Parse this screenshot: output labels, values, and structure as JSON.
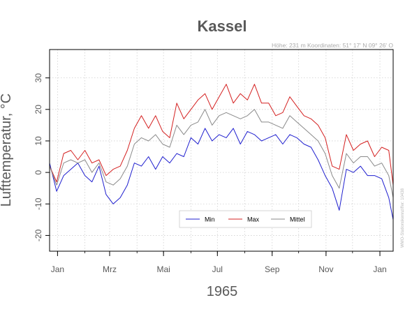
{
  "chart_data": {
    "type": "line",
    "title": "Kassel",
    "station_info": "Höhe: 231 m   Koordinaten: 51° 17' N  09° 26' O",
    "side_note": "WMO-Stationskennziffer: 10438",
    "xlabel": "1965",
    "ylabel": "Lufttemperatur, °C",
    "ylim": [
      -25,
      39
    ],
    "yticks": [
      -20,
      -10,
      0,
      10,
      20,
      30
    ],
    "x_unit": "day of year 1965 (Jan 1 = 1; 366–380 = Jan 1965 following year)",
    "xlim": [
      -8,
      381
    ],
    "xticks": [
      {
        "label": "Jan",
        "day": 1
      },
      {
        "label": "Mrz",
        "day": 60
      },
      {
        "label": "Mai",
        "day": 121
      },
      {
        "label": "Jul",
        "day": 182
      },
      {
        "label": "Sep",
        "day": 244
      },
      {
        "label": "Nov",
        "day": 305
      },
      {
        "label": "Jan",
        "day": 366
      }
    ],
    "grid": true,
    "legend_placement": "bottom-center",
    "series": [
      {
        "name": "Min",
        "color": "#1f1fcf",
        "x": [
          -8,
          0,
          8,
          16,
          24,
          32,
          40,
          48,
          56,
          64,
          72,
          80,
          88,
          96,
          104,
          112,
          120,
          128,
          136,
          144,
          152,
          160,
          168,
          176,
          184,
          192,
          200,
          208,
          216,
          224,
          232,
          240,
          248,
          256,
          264,
          272,
          280,
          288,
          296,
          304,
          312,
          320,
          328,
          336,
          344,
          352,
          360,
          368,
          376,
          381
        ],
        "values": [
          3,
          -6,
          -1,
          1,
          3,
          -1,
          -3,
          2,
          -7,
          -10,
          -8,
          -4,
          3,
          2,
          5,
          1,
          5,
          3,
          6,
          5,
          11,
          9,
          14,
          10,
          12,
          11,
          14,
          9,
          13,
          12,
          10,
          11,
          12,
          9,
          12,
          11,
          9,
          8,
          4,
          -1,
          -5,
          -12,
          1,
          0,
          2,
          -1,
          -1,
          -2,
          -8,
          -15
        ]
      },
      {
        "name": "Max",
        "color": "#d42020",
        "x": [
          -8,
          0,
          8,
          16,
          24,
          32,
          40,
          48,
          56,
          64,
          72,
          80,
          88,
          96,
          104,
          112,
          120,
          128,
          136,
          144,
          152,
          160,
          168,
          176,
          184,
          192,
          200,
          208,
          216,
          224,
          232,
          240,
          248,
          256,
          264,
          272,
          280,
          288,
          296,
          304,
          312,
          320,
          328,
          336,
          344,
          352,
          360,
          368,
          376,
          381
        ],
        "values": [
          2,
          -3,
          6,
          7,
          4,
          7,
          3,
          4,
          -1,
          1,
          2,
          7,
          14,
          18,
          14,
          18,
          13,
          11,
          22,
          17,
          20,
          23,
          25,
          20,
          24,
          28,
          22,
          25,
          23,
          28,
          22,
          22,
          18,
          19,
          24,
          21,
          18,
          17,
          15,
          11,
          2,
          1,
          12,
          7,
          9,
          10,
          5,
          8,
          7,
          -4
        ]
      },
      {
        "name": "Mittel",
        "color": "#8a8a8a",
        "x": [
          -8,
          0,
          8,
          16,
          24,
          32,
          40,
          48,
          56,
          64,
          72,
          80,
          88,
          96,
          104,
          112,
          120,
          128,
          136,
          144,
          152,
          160,
          168,
          176,
          184,
          192,
          200,
          208,
          216,
          224,
          232,
          240,
          248,
          256,
          264,
          272,
          280,
          288,
          296,
          304,
          312,
          320,
          328,
          336,
          344,
          352,
          360,
          368,
          376,
          381
        ],
        "values": [
          2,
          -4,
          3,
          4,
          3,
          4,
          0,
          3,
          -3,
          -4,
          -2,
          2,
          9,
          11,
          10,
          12,
          9,
          8,
          15,
          12,
          15,
          16,
          20,
          15,
          18,
          19,
          18,
          17,
          18,
          20,
          16,
          16,
          15,
          14,
          18,
          16,
          14,
          12,
          10,
          6,
          -1,
          -5,
          6,
          3,
          5,
          5,
          2,
          3,
          -1,
          -8
        ]
      }
    ]
  }
}
